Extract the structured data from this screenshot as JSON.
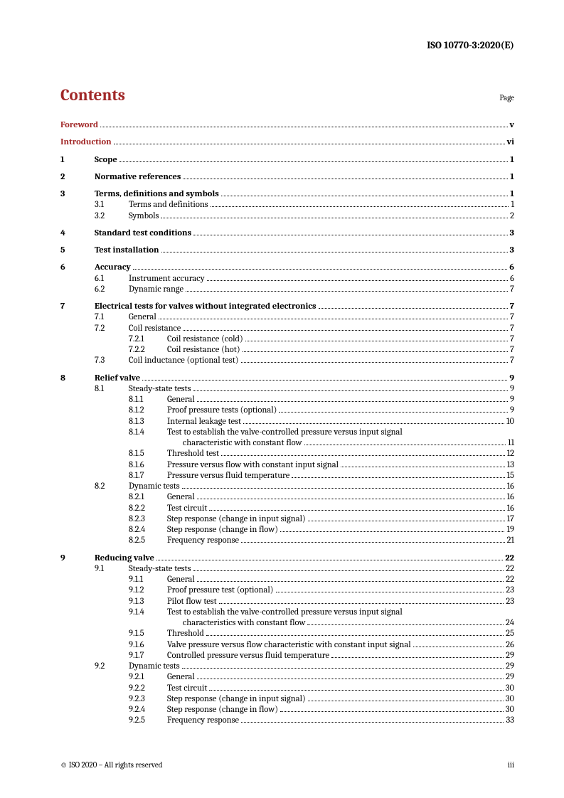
{
  "header": {
    "standard": "ISO 10770-3:2020(E)"
  },
  "contents": {
    "title": "Contents",
    "page_label": "Page"
  },
  "indent": {
    "l0": 0,
    "l1": 48,
    "l1b": 48,
    "l2": 96,
    "l2b": 96,
    "l3": 150,
    "extra": 172
  },
  "widths": {
    "l0": 48,
    "l1": 48,
    "l2": 54
  },
  "front": [
    {
      "title": "Foreword",
      "page": "v"
    },
    {
      "title": "Introduction",
      "page": "vi"
    }
  ],
  "sections": [
    {
      "num": "1",
      "title": "Scope",
      "page": "1",
      "children": []
    },
    {
      "num": "2",
      "title": "Normative references",
      "page": "1",
      "children": []
    },
    {
      "num": "3",
      "title": "Terms, definitions and symbols",
      "page": "1",
      "children": [
        {
          "num": "3.1",
          "title": "Terms and definitions",
          "page": "1"
        },
        {
          "num": "3.2",
          "title": "Symbols",
          "page": "2"
        }
      ]
    },
    {
      "num": "4",
      "title": "Standard test conditions",
      "page": "3",
      "children": []
    },
    {
      "num": "5",
      "title": "Test installation",
      "page": "3",
      "children": []
    },
    {
      "num": "6",
      "title": "Accuracy",
      "page": "6",
      "children": [
        {
          "num": "6.1",
          "title": "Instrument accuracy",
          "page": "6"
        },
        {
          "num": "6.2",
          "title": "Dynamic range",
          "page": "7"
        }
      ]
    },
    {
      "num": "7",
      "title": "Electrical tests for valves without integrated electronics",
      "page": "7",
      "children": [
        {
          "num": "7.1",
          "title": "General",
          "page": "7"
        },
        {
          "num": "7.2",
          "title": "Coil resistance",
          "page": "7",
          "children": [
            {
              "num": "7.2.1",
              "title": "Coil resistance (cold)",
              "page": "7"
            },
            {
              "num": "7.2.2",
              "title": "Coil resistance (hot)",
              "page": "7"
            }
          ]
        },
        {
          "num": "7.3",
          "title": "Coil inductance (optional test)",
          "page": "7"
        }
      ]
    },
    {
      "num": "8",
      "title": "Relief valve",
      "page": "9",
      "children": [
        {
          "num": "8.1",
          "title": "Steady-state tests",
          "page": "9",
          "children": [
            {
              "num": "8.1.1",
              "title": "General",
              "page": "9"
            },
            {
              "num": "8.1.2",
              "title": "Proof pressure tests (optional)",
              "page": "9"
            },
            {
              "num": "8.1.3",
              "title": "Internal leakage test",
              "page": "10"
            },
            {
              "num": "8.1.4",
              "title_lines": [
                "Test to establish the valve-controlled pressure versus input signal",
                "characteristic with constant flow"
              ],
              "page": "11"
            },
            {
              "num": "8.1.5",
              "title": "Threshold test",
              "page": "12"
            },
            {
              "num": "8.1.6",
              "title": "Pressure versus flow with constant input signal",
              "page": "13"
            },
            {
              "num": "8.1.7",
              "title": "Pressure versus fluid temperature",
              "page": "15"
            }
          ]
        },
        {
          "num": "8.2",
          "title": "Dynamic tests",
          "page": "16",
          "children": [
            {
              "num": "8.2.1",
              "title": "General",
              "page": "16"
            },
            {
              "num": "8.2.2",
              "title": "Test circuit",
              "page": "16"
            },
            {
              "num": "8.2.3",
              "title": "Step response (change in input signal)",
              "page": "17"
            },
            {
              "num": "8.2.4",
              "title": "Step response (change in flow)",
              "page": "19"
            },
            {
              "num": "8.2.5",
              "title": "Frequency response",
              "page": "21"
            }
          ]
        }
      ]
    },
    {
      "num": "9",
      "title": "Reducing valve",
      "page": "22",
      "children": [
        {
          "num": "9.1",
          "title": "Steady-state tests",
          "page": "22",
          "children": [
            {
              "num": "9.1.1",
              "title": "General",
              "page": "22"
            },
            {
              "num": "9.1.2",
              "title": "Proof pressure test (optional)",
              "page": "23"
            },
            {
              "num": "9.1.3",
              "title": "Pilot flow test",
              "page": "23"
            },
            {
              "num": "9.1.4",
              "title_lines": [
                "Test to establish the valve-controlled pressure versus input signal",
                "characteristics with constant flow"
              ],
              "page": "24"
            },
            {
              "num": "9.1.5",
              "title": "Threshold",
              "page": "25"
            },
            {
              "num": "9.1.6",
              "title": "Valve pressure versus flow characteristic with constant input signal",
              "page": "26"
            },
            {
              "num": "9.1.7",
              "title": "Controlled pressure versus fluid temperature",
              "page": "29"
            }
          ]
        },
        {
          "num": "9.2",
          "title": "Dynamic tests",
          "page": "29",
          "children": [
            {
              "num": "9.2.1",
              "title": "General",
              "page": "29"
            },
            {
              "num": "9.2.2",
              "title": "Test circuit",
              "page": "30"
            },
            {
              "num": "9.2.3",
              "title": "Step response (change in input signal)",
              "page": "30"
            },
            {
              "num": "9.2.4",
              "title": "Step response (change in flow)",
              "page": "30"
            },
            {
              "num": "9.2.5",
              "title": "Frequency response",
              "page": "33"
            }
          ]
        }
      ]
    }
  ],
  "footer": {
    "copyright": "© ISO 2020 – All rights reserved",
    "page_num": "iii"
  }
}
